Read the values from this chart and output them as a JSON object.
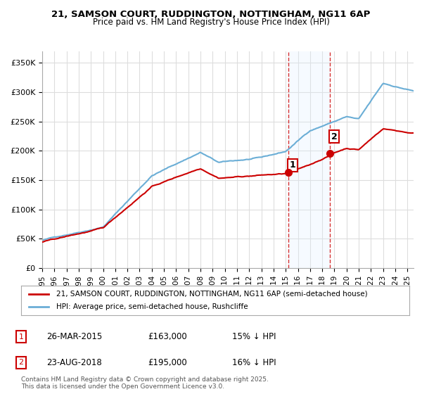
{
  "title_line1": "21, SAMSON COURT, RUDDINGTON, NOTTINGHAM, NG11 6AP",
  "title_line2": "Price paid vs. HM Land Registry's House Price Index (HPI)",
  "ylabel_ticks": [
    "£0",
    "£50K",
    "£100K",
    "£150K",
    "£200K",
    "£250K",
    "£300K",
    "£350K"
  ],
  "ytick_values": [
    0,
    50000,
    100000,
    150000,
    200000,
    250000,
    300000,
    350000
  ],
  "ylim": [
    0,
    370000
  ],
  "xlim_start": 1995.0,
  "xlim_end": 2025.5,
  "hpi_color": "#6baed6",
  "price_color": "#cc0000",
  "sale1_date": 2015.23,
  "sale1_price": 163000,
  "sale2_date": 2018.64,
  "sale2_price": 195000,
  "sale1_label": "1",
  "sale2_label": "2",
  "legend_line1": "21, SAMSON COURT, RUDDINGTON, NOTTINGHAM, NG11 6AP (semi-detached house)",
  "legend_line2": "HPI: Average price, semi-detached house, Rushcliffe",
  "table_row1": [
    "1",
    "26-MAR-2015",
    "£163,000",
    "15% ↓ HPI"
  ],
  "table_row2": [
    "2",
    "23-AUG-2018",
    "£195,000",
    "16% ↓ HPI"
  ],
  "footer": "Contains HM Land Registry data © Crown copyright and database right 2025.\nThis data is licensed under the Open Government Licence v3.0.",
  "background_color": "#ffffff",
  "grid_color": "#dddddd",
  "shade_color": "#ddeeff"
}
